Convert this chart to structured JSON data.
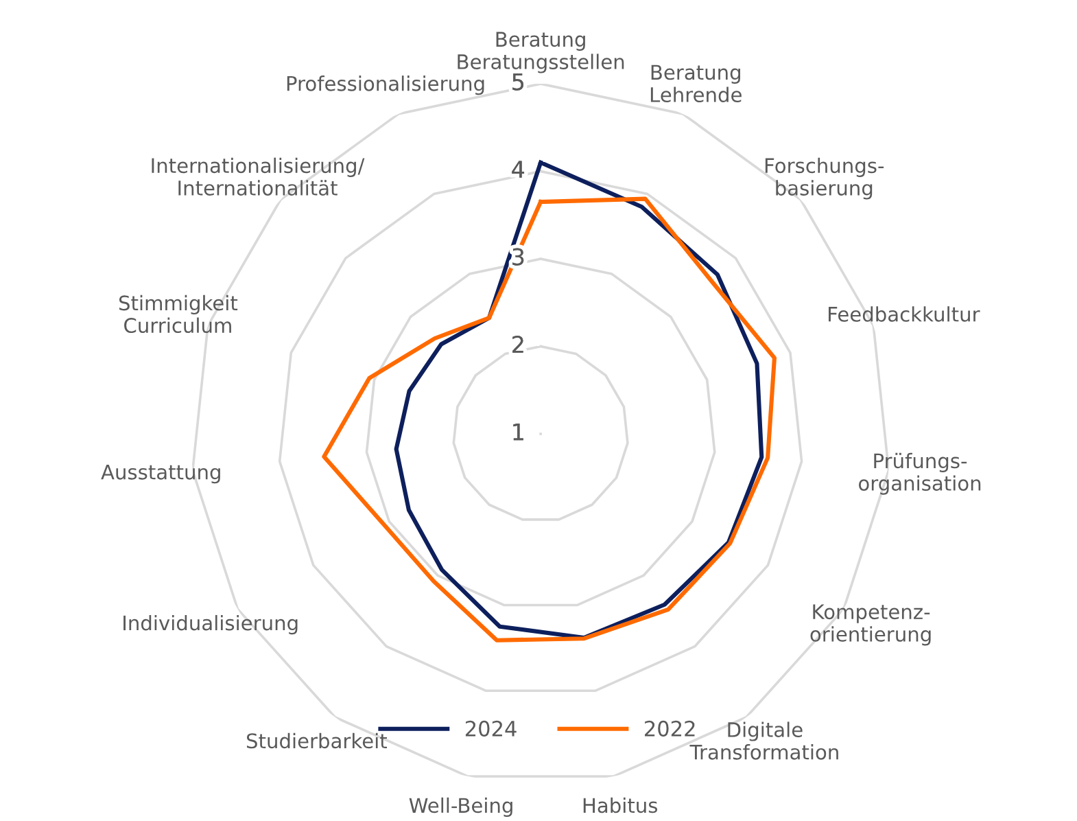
{
  "chart_data": {
    "type": "radar",
    "categories": [
      "Beratung\nBeratungsstellen",
      "Beratung\nLehrende",
      "Forschungs-\nbasierung",
      "Feedbackkultur",
      "Prüfungs-\norganisation",
      "Kompetenz-\norientierung",
      "Digitale\nTransformation",
      "Habitus",
      "Well-Being",
      "Studierbarkeit",
      "Individualisierung",
      "Ausstattung",
      "Stimmigkeit\nCurriculum",
      "Internationalisierung/\nInternationalität",
      "Professionalisierung"
    ],
    "series": [
      {
        "name": "2024",
        "color": "#0d1f5c",
        "values": [
          4.1,
          3.84,
          3.72,
          3.6,
          3.54,
          3.48,
          3.41,
          3.38,
          3.25,
          2.92,
          2.74,
          2.66,
          2.58,
          2.53,
          2.45
        ]
      },
      {
        "name": "2022",
        "color": "#ff6a00",
        "values": [
          3.65,
          3.94,
          3.62,
          3.81,
          3.61,
          3.5,
          3.48,
          3.39,
          3.41,
          3.08,
          3.07,
          3.49,
          3.06,
          2.63,
          2.45
        ]
      }
    ],
    "ylim": [
      1,
      5
    ],
    "yticks": [
      1,
      2,
      3,
      4,
      5
    ],
    "grid": true,
    "legend": "bottom",
    "marker": "none",
    "line_style": "solid"
  }
}
